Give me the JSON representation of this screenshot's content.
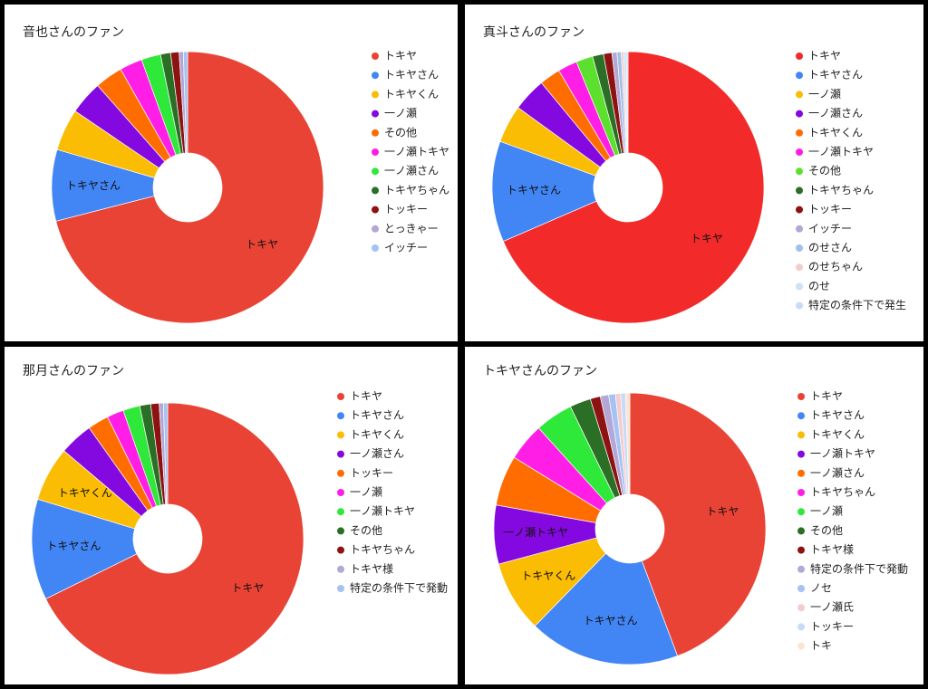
{
  "chart_data": [
    {
      "type": "pie",
      "title": "音也さんのファン",
      "categories": [
        "トキヤ",
        "トキヤさん",
        "トキヤくん",
        "一ノ瀬",
        "その他",
        "一ノ瀬トキヤ",
        "一ノ瀬さん",
        "トキヤちゃん",
        "トッキー",
        "とっきゃー",
        "イッチー"
      ],
      "values": [
        71,
        8.5,
        5,
        4,
        3.3,
        2.7,
        2.3,
        1.2,
        1,
        0.5,
        0.5
      ],
      "colors": [
        "#e94335",
        "#4285f4",
        "#fbbc04",
        "#8409e0",
        "#ff6d01",
        "#ff1ee6",
        "#2ee83a",
        "#2b6e25",
        "#8e1212",
        "#b4a7d6",
        "#a4c2f4"
      ]
    },
    {
      "type": "pie",
      "title": "真斗さんのファン",
      "categories": [
        "トキヤ",
        "トキヤさん",
        "一ノ瀬",
        "一ノ瀬さん",
        "トキヤくん",
        "一ノ瀬トキヤ",
        "その他",
        "トキヤちゃん",
        "トッキー",
        "イッチー",
        "のせさん",
        "のせちゃん",
        "のせ",
        "特定の条件下で発生"
      ],
      "values": [
        68.5,
        12,
        4.5,
        4,
        2.5,
        2.3,
        2,
        1.3,
        1,
        0.6,
        0.5,
        0.3,
        0.3,
        0.2
      ],
      "colors": [
        "#f22a2a",
        "#4285f4",
        "#fbbc04",
        "#8409e0",
        "#ff6d01",
        "#ff1ee6",
        "#5ce02e",
        "#2b6e25",
        "#8e1212",
        "#b4a7d6",
        "#9fc0e8",
        "#f4cccc",
        "#cfe2f3",
        "#c9daf8"
      ]
    },
    {
      "type": "pie",
      "title": "那月さんのファン",
      "categories": [
        "トキヤ",
        "トキヤさん",
        "トキヤくん",
        "一ノ瀬さん",
        "トッキー",
        "一ノ瀬",
        "一ノ瀬トキヤ",
        "その他",
        "トキヤちゃん",
        "トキヤ様",
        "特定の条件下で発動"
      ],
      "values": [
        67.7,
        12,
        6.5,
        4,
        2.5,
        2,
        2,
        1.3,
        1,
        0.5,
        0.5
      ],
      "colors": [
        "#e94335",
        "#4285f4",
        "#fbbc04",
        "#8409e0",
        "#ff6d01",
        "#ff1ee6",
        "#2ee83a",
        "#2b6e25",
        "#8e1212",
        "#b4a7d6",
        "#a4c2f4"
      ]
    },
    {
      "type": "pie",
      "title": "トキヤさんのファン",
      "categories": [
        "トキヤ",
        "トキヤさん",
        "トキヤくん",
        "一ノ瀬トキヤ",
        "一ノ瀬さん",
        "トキヤちゃん",
        "一ノ瀬",
        "その他",
        "トキヤ様",
        "特定の条件下で発動",
        "ノセ",
        "一ノ瀬氏",
        "トッキー",
        "トキ"
      ],
      "values": [
        44.3,
        18,
        8.5,
        7,
        6,
        4.5,
        4.5,
        2.5,
        1.2,
        1,
        0.8,
        0.6,
        0.6,
        0.5
      ],
      "colors": [
        "#e94335",
        "#4285f4",
        "#fbbc04",
        "#8409e0",
        "#ff6d01",
        "#ff1ee6",
        "#2ee83a",
        "#2b6e25",
        "#8e1212",
        "#b4a7d6",
        "#a4c2f4",
        "#f4cccc",
        "#c9daf8",
        "#fce5cd"
      ]
    }
  ]
}
